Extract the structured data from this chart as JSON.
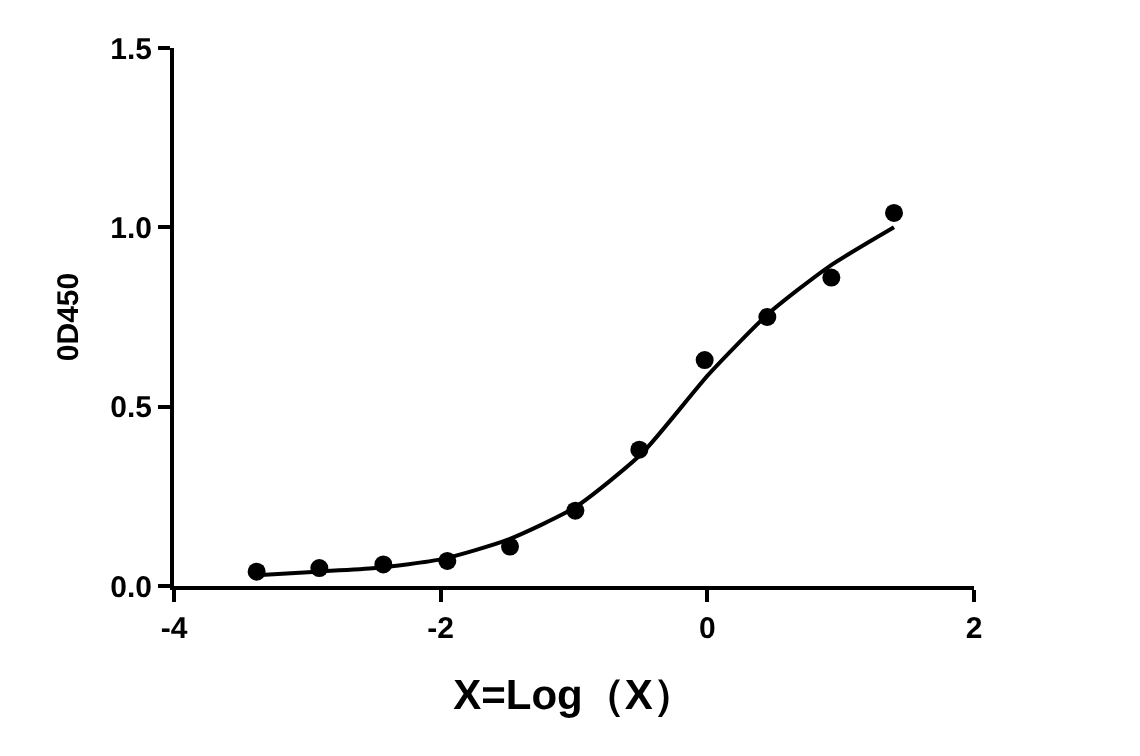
{
  "chart_data": {
    "type": "scatter",
    "xlabel": "X=Log（X）",
    "ylabel": "0D450",
    "xlim": [
      -4,
      2
    ],
    "xticks": [
      -4,
      -2,
      0,
      2
    ],
    "ylim": [
      0,
      1.5
    ],
    "yticks": [
      {
        "value": 0,
        "label": "0.0"
      },
      {
        "value": 0.5,
        "label": "0.5"
      },
      {
        "value": 1,
        "label": "1.0"
      },
      {
        "value": 1.5,
        "label": "1.5"
      }
    ],
    "grid": false,
    "series": [
      {
        "marker": "circle",
        "color": "#000000",
        "x": [
          -3.38,
          -2.91,
          -2.43,
          -1.95,
          -1.48,
          -0.99,
          -0.51,
          -0.02,
          0.45,
          0.93,
          1.4
        ],
        "values": [
          0.04,
          0.05,
          0.06,
          0.07,
          0.11,
          0.21,
          0.38,
          0.63,
          0.75,
          0.86,
          1.04
        ]
      },
      {
        "type": "line",
        "marker": "none",
        "line_style": "solid",
        "color": "#000000",
        "x": [
          -3.38,
          -2.93,
          -2.49,
          -1.99,
          -1.49,
          -0.99,
          -0.49,
          0.01,
          0.46,
          0.91,
          1.4
        ],
        "values": [
          0.03,
          0.04,
          0.05,
          0.075,
          0.13,
          0.22,
          0.37,
          0.59,
          0.76,
          0.89,
          1.0
        ]
      }
    ]
  }
}
